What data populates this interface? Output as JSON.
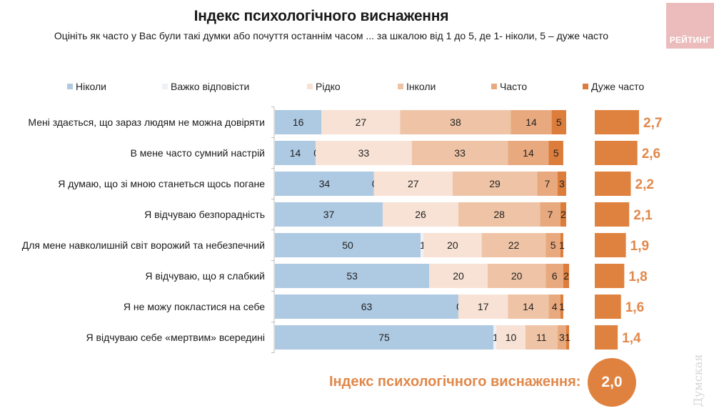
{
  "header": {
    "title": "Індекс психологічного виснаження",
    "subtitle": "Оцініть як часто у Вас були такі думки або почуття останнім часом ... за шкалою від 1 до 5, де 1- ніколи, 5 – дуже часто",
    "logo_text": "РЕЙТИНГ"
  },
  "colors": {
    "never": "#aecae3",
    "hard_to_say": "#eef1f7",
    "rarely": "#f8e2d5",
    "sometimes": "#efc4a6",
    "often": "#e8a97e",
    "very_often": "#dd7d3b",
    "index_bar": "#e0823f",
    "index_text": "#e1884a",
    "logo_bg": "#ecbcbc"
  },
  "chart_data": {
    "type": "bar",
    "orientation": "horizontal",
    "stacked": true,
    "title": "Індекс психологічного виснаження",
    "xlabel": "",
    "ylabel": "",
    "xlim": [
      0,
      100
    ],
    "legend_position": "top",
    "categories": [
      "Мені здається, що зараз людям не можна довіряти",
      "В мене часто сумний настрій",
      "Я думаю, що зі мною станеться щось погане",
      "Я відчуваю безпорадність",
      "Для мене навколишній світ ворожий та небезпечний",
      "Я відчуваю, що я слабкий",
      "Я не можу покластися на себе",
      "Я відчуваю себе «мертвим» всередині"
    ],
    "series": [
      {
        "name": "Ніколи",
        "key": "never",
        "values": [
          16,
          14,
          34,
          37,
          50,
          53,
          63,
          75
        ]
      },
      {
        "name": "Важко відповісти",
        "key": "hard_to_say",
        "values": [
          0,
          0,
          0,
          0,
          1,
          0,
          0,
          1
        ],
        "labels": [
          "",
          "0",
          "0",
          "",
          "1",
          "",
          "0",
          "1"
        ]
      },
      {
        "name": "Рідко",
        "key": "rarely",
        "values": [
          27,
          33,
          27,
          26,
          20,
          20,
          17,
          10
        ]
      },
      {
        "name": "Інколи",
        "key": "sometimes",
        "values": [
          38,
          33,
          29,
          28,
          22,
          20,
          14,
          11
        ]
      },
      {
        "name": "Часто",
        "key": "often",
        "values": [
          14,
          14,
          7,
          7,
          5,
          6,
          4,
          3
        ]
      },
      {
        "name": "Дуже часто",
        "key": "very_often",
        "values": [
          5,
          5,
          3,
          2,
          1,
          2,
          1,
          1
        ]
      }
    ],
    "index_series": {
      "name": "Індекс",
      "values": [
        2.7,
        2.6,
        2.2,
        2.1,
        1.9,
        1.8,
        1.6,
        1.4
      ],
      "labels": [
        "2,7",
        "2,6",
        "2,2",
        "2,1",
        "1,9",
        "1,8",
        "1,6",
        "1,4"
      ]
    }
  },
  "summary": {
    "label": "Індекс психологічного виснаження:",
    "value": "2,0"
  },
  "watermark": "Думская"
}
